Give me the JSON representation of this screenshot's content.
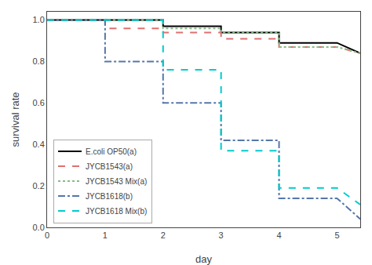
{
  "chart_data": {
    "type": "line",
    "xlabel": "day",
    "ylabel": "survival rate",
    "xlim": [
      0,
      5.4
    ],
    "ylim": [
      0.0,
      1.04
    ],
    "xticks": [
      0,
      1,
      2,
      3,
      4,
      5
    ],
    "yticks": [
      {
        "value": 0.0,
        "label": "0.0"
      },
      0.2,
      0.4,
      0.6,
      0.8,
      {
        "value": 1.0,
        "label": "1.0"
      }
    ],
    "grid": false,
    "legend": "lower left",
    "series": [
      {
        "name": "E.coli OP50(a)",
        "color": "#000000",
        "line_style": "solid",
        "x": [
          0,
          2,
          2,
          3,
          3,
          4,
          4,
          5,
          5.4
        ],
        "values": [
          1.0,
          1.0,
          0.97,
          0.97,
          0.94,
          0.94,
          0.89,
          0.89,
          0.84
        ]
      },
      {
        "name": "JYCB1543(a)",
        "color": "#e07070",
        "line_style": "dashed",
        "x": [
          0,
          1,
          1,
          2,
          2,
          3,
          3,
          4,
          4,
          5,
          5.4
        ],
        "values": [
          1.0,
          1.0,
          0.96,
          0.96,
          0.94,
          0.94,
          0.91,
          0.91,
          0.87,
          0.87,
          0.84
        ]
      },
      {
        "name": "JYCB1543 Mix(a)",
        "color": "#88bb88",
        "line_style": "dotted",
        "x": [
          0,
          2,
          2,
          3,
          3,
          4,
          4,
          5,
          5.4
        ],
        "values": [
          1.0,
          1.0,
          0.96,
          0.96,
          0.94,
          0.94,
          0.87,
          0.87,
          0.84
        ]
      },
      {
        "name": "JYCB1618(b)",
        "color": "#5577aa",
        "line_style": "dashdot",
        "x": [
          0,
          1,
          1,
          2,
          2,
          3,
          3,
          4,
          4,
          5,
          5.4
        ],
        "values": [
          1.0,
          1.0,
          0.8,
          0.8,
          0.6,
          0.6,
          0.42,
          0.42,
          0.14,
          0.14,
          0.04
        ]
      },
      {
        "name": "JYCB1618 Mix(b)",
        "color": "#00cccc",
        "line_style": "dashed",
        "x": [
          0,
          2,
          2,
          3,
          3,
          4,
          4,
          5,
          5.4
        ],
        "values": [
          1.0,
          1.0,
          0.76,
          0.76,
          0.37,
          0.37,
          0.19,
          0.19,
          0.11
        ]
      }
    ]
  }
}
